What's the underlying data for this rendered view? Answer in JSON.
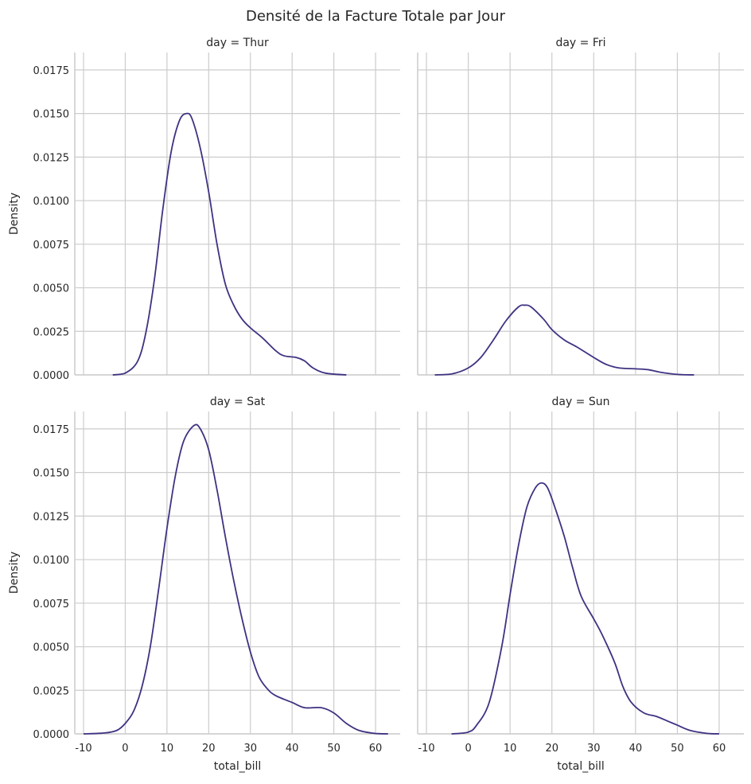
{
  "chart_data": {
    "type": "line",
    "title": "Densité de la Facture Totale par Jour",
    "xlabel": "total_bill",
    "ylabel": "Density",
    "xlim": [
      -12.1,
      65.9
    ],
    "ylim": [
      0,
      0.0185
    ],
    "xticks": [
      -10,
      0,
      10,
      20,
      30,
      40,
      50,
      60
    ],
    "yticks": [
      0,
      0.0025,
      0.005,
      0.0075,
      0.01,
      0.0125,
      0.015,
      0.0175
    ],
    "ytick_labels": [
      "0.0000",
      "0.0025",
      "0.0050",
      "0.0075",
      "0.0100",
      "0.0125",
      "0.0150",
      "0.0175"
    ],
    "grid": true,
    "line_color": "#3f3282",
    "panels": [
      {
        "title": "day = Thur",
        "x": [
          -3,
          0,
          3,
          5,
          7,
          9,
          11,
          13,
          14.7,
          16,
          18,
          20,
          22,
          24,
          26,
          28,
          30,
          33,
          36,
          38,
          41,
          43,
          45,
          48,
          53
        ],
        "y": [
          0,
          0.0001,
          0.0008,
          0.0025,
          0.0055,
          0.0095,
          0.0128,
          0.0146,
          0.015,
          0.0147,
          0.013,
          0.0105,
          0.0075,
          0.0052,
          0.004,
          0.0032,
          0.0027,
          0.0021,
          0.0014,
          0.0011,
          0.001,
          0.0008,
          0.0004,
          0.0001,
          0
        ]
      },
      {
        "title": "day = Fri",
        "x": [
          -8,
          -4,
          0,
          3,
          6,
          9,
          12,
          13.5,
          15,
          18,
          20,
          23,
          26,
          30,
          33,
          36,
          40,
          43,
          46,
          50,
          54
        ],
        "y": [
          0,
          5e-05,
          0.0004,
          0.001,
          0.002,
          0.0031,
          0.0039,
          0.004,
          0.0039,
          0.0032,
          0.0026,
          0.002,
          0.0016,
          0.001,
          0.0006,
          0.0004,
          0.00035,
          0.0003,
          0.00015,
          3e-05,
          0
        ]
      },
      {
        "title": "day = Sat",
        "x": [
          -10,
          -5,
          -2,
          0,
          2,
          4,
          6,
          8,
          10,
          12,
          14,
          16.5,
          18,
          20,
          22,
          24,
          26,
          28,
          30,
          32,
          34,
          36,
          40,
          43,
          47,
          50,
          53,
          56,
          60,
          63
        ],
        "y": [
          0,
          5e-05,
          0.0002,
          0.0006,
          0.0013,
          0.0027,
          0.005,
          0.0083,
          0.0118,
          0.0148,
          0.0168,
          0.0177,
          0.0175,
          0.0163,
          0.014,
          0.0113,
          0.0088,
          0.0066,
          0.0047,
          0.0033,
          0.0026,
          0.0022,
          0.0018,
          0.0015,
          0.0015,
          0.0012,
          0.0006,
          0.0002,
          2e-05,
          0
        ]
      },
      {
        "title": "day = Sun",
        "x": [
          -4,
          0,
          2,
          5,
          8,
          10,
          12,
          14,
          16,
          17.5,
          19,
          21,
          23,
          25,
          27,
          30,
          32,
          35,
          37,
          39,
          42,
          45,
          48,
          50,
          53,
          57,
          60
        ],
        "y": [
          0,
          0.0001,
          0.0005,
          0.0018,
          0.005,
          0.008,
          0.0108,
          0.013,
          0.0141,
          0.0144,
          0.0141,
          0.0128,
          0.0113,
          0.0095,
          0.0079,
          0.0066,
          0.0057,
          0.0041,
          0.0027,
          0.0018,
          0.0012,
          0.001,
          0.0007,
          0.0005,
          0.0002,
          3e-05,
          0
        ]
      }
    ]
  }
}
